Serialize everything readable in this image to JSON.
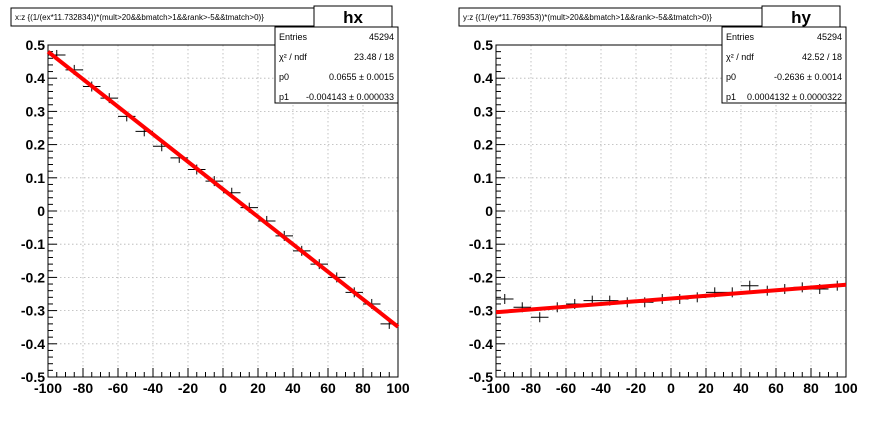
{
  "chart_data": [
    {
      "type": "scatter",
      "name": "hx",
      "title": "x:z {(1/(ex*11.732834))*(mult>20&&bmatch>1&&rank>-5&&tmatch>0)}",
      "xlim": [
        -100,
        100
      ],
      "ylim": [
        -0.5,
        0.5
      ],
      "x_ticks": [
        -100,
        -80,
        -60,
        -40,
        -20,
        0,
        20,
        40,
        60,
        80,
        100
      ],
      "y_ticks": [
        -0.5,
        -0.4,
        -0.3,
        -0.2,
        -0.1,
        0,
        0.1,
        0.2,
        0.3,
        0.4,
        0.5
      ],
      "x_tick_labels": [
        "-100",
        "-80",
        "-60",
        "-40",
        "-20",
        "0",
        "20",
        "40",
        "60",
        "80",
        "100"
      ],
      "y_tick_labels": [
        "-0.5",
        "-0.4",
        "-0.3",
        "-0.2",
        "-0.1",
        "0",
        "0.1",
        "0.2",
        "0.3",
        "0.4",
        "0.5"
      ],
      "grid": true,
      "bin_half_width": 5,
      "x": [
        -95,
        -85,
        -75,
        -65,
        -55,
        -45,
        -35,
        -25,
        -15,
        -5,
        5,
        15,
        25,
        35,
        45,
        55,
        65,
        75,
        85,
        95
      ],
      "y": [
        0.47,
        0.425,
        0.375,
        0.34,
        0.285,
        0.24,
        0.195,
        0.16,
        0.125,
        0.09,
        0.055,
        0.01,
        -0.03,
        -0.075,
        -0.12,
        -0.16,
        -0.2,
        -0.245,
        -0.28,
        -0.34
      ],
      "fit": {
        "p0": 0.0655,
        "p1": -0.004143,
        "color": "#ff0000"
      },
      "stats": {
        "entries_label": "Entries",
        "entries": "45294",
        "chi2_label": "χ² / ndf",
        "chi2": "23.48 / 18",
        "p0_label": "p0",
        "p0": "0.0655  ± 0.0015",
        "p1_label": "p1",
        "p1": "-0.004143  ± 0.000033"
      }
    },
    {
      "type": "scatter",
      "name": "hy",
      "title": "y:z {(1/(ey*11.769353))*(mult>20&&bmatch>1&&rank>-5&&tmatch>0)}",
      "xlim": [
        -100,
        100
      ],
      "ylim": [
        -0.5,
        0.5
      ],
      "x_ticks": [
        -100,
        -80,
        -60,
        -40,
        -20,
        0,
        20,
        40,
        60,
        80,
        100
      ],
      "y_ticks": [
        -0.5,
        -0.4,
        -0.3,
        -0.2,
        -0.1,
        0,
        0.1,
        0.2,
        0.3,
        0.4,
        0.5
      ],
      "x_tick_labels": [
        "-100",
        "-80",
        "-60",
        "-40",
        "-20",
        "0",
        "20",
        "40",
        "60",
        "80",
        "100"
      ],
      "y_tick_labels": [
        "-0.5",
        "-0.4",
        "-0.3",
        "-0.2",
        "-0.1",
        "0",
        "0.1",
        "0.2",
        "0.3",
        "0.4",
        "0.5"
      ],
      "grid": true,
      "bin_half_width": 5,
      "x": [
        -95,
        -85,
        -75,
        -65,
        -55,
        -45,
        -35,
        -25,
        -15,
        -5,
        5,
        15,
        25,
        35,
        45,
        55,
        65,
        75,
        85,
        95
      ],
      "y": [
        -0.265,
        -0.29,
        -0.32,
        -0.29,
        -0.28,
        -0.27,
        -0.27,
        -0.275,
        -0.275,
        -0.265,
        -0.265,
        -0.26,
        -0.245,
        -0.245,
        -0.225,
        -0.24,
        -0.235,
        -0.23,
        -0.235,
        -0.225
      ],
      "fit": {
        "p0": -0.2636,
        "p1": 0.0004132,
        "color": "#ff0000"
      },
      "stats": {
        "entries_label": "Entries",
        "entries": "45294",
        "chi2_label": "χ² / ndf",
        "chi2": "42.52 / 18",
        "p0_label": "p0",
        "p0": "-0.2636  ± 0.0014",
        "p1_label": "p1",
        "p1": "0.0004132  ± 0.0000322"
      }
    }
  ]
}
